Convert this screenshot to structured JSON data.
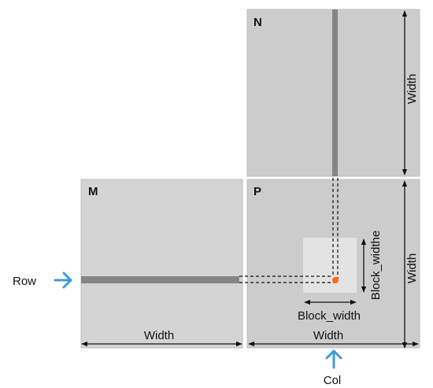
{
  "matrices": {
    "n": {
      "label": "N",
      "height_label": "Width"
    },
    "m": {
      "label": "M",
      "width_label": "Width"
    },
    "p": {
      "label": "P",
      "width_label": "Width",
      "height_label": "Width"
    }
  },
  "block": {
    "width_label": "Block_width",
    "height_label": "Block_widthe"
  },
  "pointers": {
    "row": "Row",
    "col": "Col"
  },
  "colors": {
    "matrix_fill": "#cccccc",
    "matrix_m_fill": "#d4d4d4",
    "strip": "#858585",
    "block_fill": "#e3e3e3",
    "arrow_blue": "#3d9bd6",
    "dot": "#ff6a13",
    "line": "#111111"
  }
}
